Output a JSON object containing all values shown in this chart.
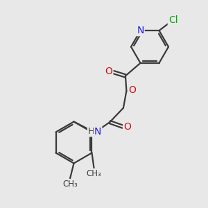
{
  "bg_color": "#e8e8e8",
  "bond_color": "#3a3a3a",
  "bond_width": 1.6,
  "atom_colors": {
    "N": "#1a1aee",
    "O": "#cc1111",
    "Cl": "#00aa00",
    "H": "#3a3a3a",
    "C": "#3a3a3a"
  },
  "font_size": 10,
  "font_size_small": 9
}
